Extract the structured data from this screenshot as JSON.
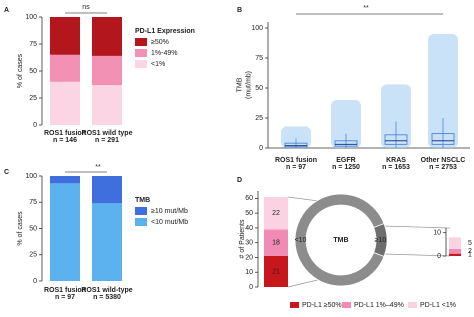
{
  "chart_data": [
    {
      "type": "bar",
      "stacked": true,
      "panel": "A",
      "ylabel": "% of cases",
      "categories": [
        "ROS1 fusion",
        "ROS1 wild type"
      ],
      "n_labels": [
        "n = 146",
        "n = 291"
      ],
      "series": [
        {
          "name": "<1%",
          "color": "#fbd5e3",
          "values": [
            40,
            37
          ]
        },
        {
          "name": "1%-49%",
          "color": "#f391b5",
          "values": [
            25,
            27
          ]
        },
        {
          "name": "≥50%",
          "color": "#b3161d",
          "values": [
            35,
            36
          ]
        }
      ],
      "legend_title": "PD-L1 Expression",
      "legend": "right",
      "ylim": [
        0,
        100
      ],
      "yticks": [
        0,
        25,
        50,
        75,
        100
      ],
      "annotation": "ns"
    },
    {
      "type": "box",
      "panel": "B",
      "ylabel": [
        "TMB",
        "(mut/mb)"
      ],
      "categories": [
        "ROS1 fusion",
        "EGFR",
        "KRAS",
        "Other NSCLC"
      ],
      "n_labels": [
        "n = 97",
        "n = 1250",
        "n = 1653",
        "n = 2753"
      ],
      "min": [
        0,
        0,
        0,
        0
      ],
      "q1": [
        1,
        1.5,
        3,
        3
      ],
      "median": [
        2,
        3,
        6,
        6
      ],
      "q3": [
        4,
        6,
        11,
        12
      ],
      "max": [
        8,
        12,
        22,
        25
      ],
      "max_observed": [
        18,
        40,
        53,
        95
      ],
      "color": "#4a86d8",
      "cloud_color": "#9fcbf2",
      "ylim": [
        0,
        105
      ],
      "yticks": [
        0,
        25,
        50,
        75,
        100
      ],
      "annotation": "**"
    },
    {
      "type": "bar",
      "stacked": true,
      "panel": "C",
      "ylabel": "% of cases",
      "categories": [
        "ROS1 fusion",
        "ROS1 wild-type"
      ],
      "n_labels": [
        "n = 97",
        "n = 5380"
      ],
      "series": [
        {
          "name": "<10 mut/Mb",
          "color": "#5cb1ef",
          "values": [
            93,
            74
          ]
        },
        {
          "name": "≥10 mut/Mb",
          "color": "#3f6fdc",
          "values": [
            7,
            26
          ]
        }
      ],
      "legend_title": "TMB",
      "legend": "right",
      "ylim": [
        0,
        100
      ],
      "yticks": [
        0,
        25,
        50,
        75,
        100
      ],
      "annotation": "**"
    },
    {
      "type": "bar",
      "stacked": true,
      "panel": "D",
      "ylabel": "# of Patients",
      "categories": [
        null
      ],
      "series": [
        {
          "name": "PD-L1 ≥50%",
          "color": "#c8161d",
          "values": [
            21
          ]
        },
        {
          "name": "PD-L1 1%–49%",
          "color": "#f08cb3",
          "values": [
            18
          ]
        },
        {
          "name": "PD-L1 <1%",
          "color": "#fbd2e1",
          "values": [
            22
          ]
        }
      ],
      "legend": "bottom",
      "value_labels_shown": true,
      "ylim": [
        0,
        65
      ],
      "yticks": [
        0,
        10,
        20,
        30,
        40,
        50,
        60
      ]
    },
    {
      "type": "pie",
      "title": "TMB",
      "categories": [
        "<10",
        "≥10"
      ],
      "values": [
        61,
        8
      ],
      "colors": [
        "#8c8c8c",
        "#6e6e6e"
      ]
    },
    {
      "type": "bar",
      "stacked": true,
      "categories": [
        null
      ],
      "series": [
        {
          "color": "#c8161d",
          "values": [
            1
          ]
        },
        {
          "color": "#f08cb3",
          "values": [
            2
          ]
        },
        {
          "color": "#fbd2e1",
          "values": [
            5
          ]
        }
      ],
      "value_labels_shown": true,
      "ylim": [
        0,
        12
      ],
      "yticks": [
        0,
        10
      ]
    }
  ]
}
